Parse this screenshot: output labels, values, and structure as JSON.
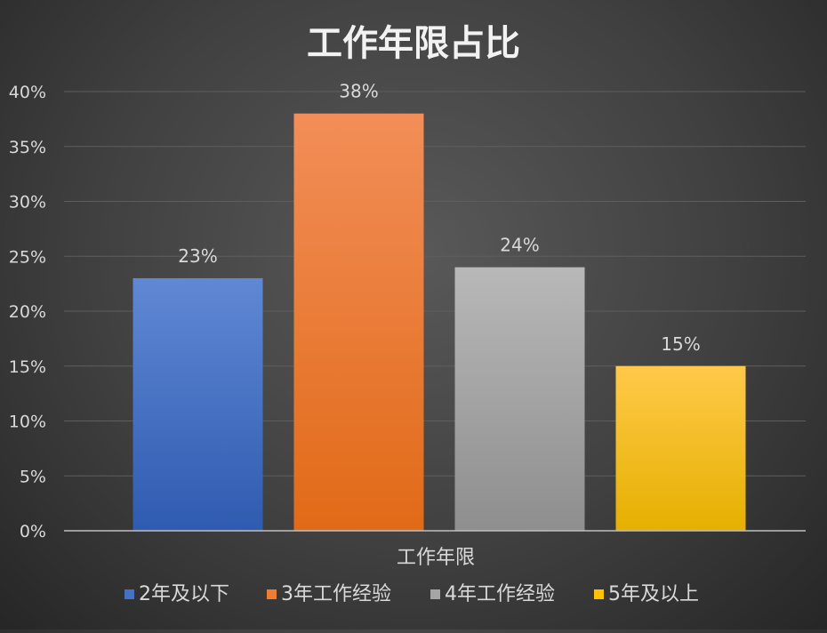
{
  "chart_data": {
    "type": "bar",
    "title": "工作年限占比",
    "xlabel": "工作年限",
    "ylabel": "",
    "categories": [
      "工作年限"
    ],
    "series": [
      {
        "name": "2年及以下",
        "values": [
          23
        ],
        "color": "#4472C4",
        "color_light": "#6088D4",
        "color_dark": "#2F5BB0"
      },
      {
        "name": "3年工作经验",
        "values": [
          38
        ],
        "color": "#ED7D31",
        "color_light": "#F28E58",
        "color_dark": "#E16A17"
      },
      {
        "name": "4年工作经验",
        "values": [
          24
        ],
        "color": "#A5A5A5",
        "color_light": "#B8B8B8",
        "color_dark": "#8E8E8E"
      },
      {
        "name": "5年及以上",
        "values": [
          15
        ],
        "color": "#FFC000",
        "color_light": "#FFC94A",
        "color_dark": "#E5B000"
      }
    ],
    "data_labels": [
      "23%",
      "38%",
      "24%",
      "15%"
    ],
    "y_ticks": [
      "0%",
      "5%",
      "10%",
      "15%",
      "20%",
      "25%",
      "30%",
      "35%",
      "40%"
    ],
    "ylim": [
      0,
      40
    ],
    "grid": true,
    "legend_position": "bottom"
  },
  "colors": {
    "gridline": "#5E5E5E",
    "axis_line": "#BFBFBF",
    "text": "#D9D9D9",
    "title": "#F2F2F2"
  }
}
